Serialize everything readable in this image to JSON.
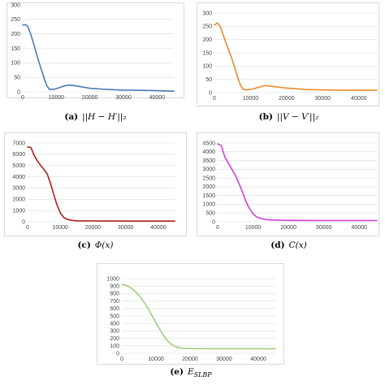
{
  "chart_data": [
    {
      "type": "line",
      "caption_tag": "(a)",
      "caption_expr": "||H − H′||₂",
      "color": "#4a7ab8",
      "ylim": [
        0,
        300
      ],
      "yticks": [
        "0",
        "50",
        "100",
        "150",
        "200",
        "250",
        "300"
      ],
      "xlim": [
        0,
        45000
      ],
      "xticks": [
        "0",
        "10000",
        "20000",
        "30000",
        "40000"
      ],
      "grid": true,
      "x": [
        0,
        800,
        1500,
        2500,
        3500,
        4500,
        5500,
        6500,
        7200,
        8000,
        9000,
        10000,
        11000,
        12000,
        13000,
        14000,
        15000,
        17000,
        20000,
        25000,
        30000,
        35000,
        40000,
        45000
      ],
      "y": [
        230,
        232,
        226,
        195,
        155,
        115,
        78,
        42,
        20,
        8,
        8,
        11,
        15,
        19,
        22,
        23,
        22,
        18,
        12,
        8,
        6,
        5,
        4,
        2
      ]
    },
    {
      "type": "line",
      "caption_tag": "(b)",
      "caption_expr": "||V − V′||₂",
      "color": "#ed8a2a",
      "ylim": [
        0,
        300
      ],
      "yticks": [
        "0",
        "50",
        "100",
        "150",
        "200",
        "250",
        "300"
      ],
      "xlim": [
        0,
        45000
      ],
      "xticks": [
        "0",
        "10000",
        "20000",
        "30000",
        "40000"
      ],
      "grid": true,
      "x": [
        0,
        800,
        1500,
        2500,
        3500,
        4500,
        5500,
        6500,
        7300,
        8000,
        9000,
        10000,
        11000,
        12000,
        13000,
        14000,
        15000,
        17000,
        20000,
        25000,
        30000,
        35000,
        40000,
        45000
      ],
      "y": [
        255,
        262,
        252,
        215,
        175,
        140,
        100,
        55,
        25,
        12,
        10,
        12,
        15,
        19,
        23,
        26,
        25,
        22,
        17,
        12,
        10,
        9,
        9,
        9
      ]
    },
    {
      "type": "line",
      "caption_tag": "(c)",
      "caption_expr": "Φ(x)",
      "color": "#b01e1e",
      "ylim": [
        0,
        7000
      ],
      "yticks": [
        "0",
        "1000",
        "2000",
        "3000",
        "4000",
        "5000",
        "6000",
        "7000"
      ],
      "xlim": [
        0,
        45000
      ],
      "xticks": [
        "0",
        "10000",
        "20000",
        "30000",
        "40000"
      ],
      "grid": true,
      "x": [
        0,
        1000,
        2000,
        3000,
        4000,
        5000,
        6000,
        7000,
        8000,
        9000,
        10000,
        11000,
        12000,
        13000,
        14000,
        15000,
        17000,
        20000,
        25000,
        30000,
        35000,
        40000,
        45000
      ],
      "y": [
        6650,
        6600,
        5900,
        5400,
        5000,
        4650,
        4250,
        3400,
        2400,
        1500,
        800,
        400,
        230,
        150,
        110,
        90,
        80,
        70,
        65,
        60,
        60,
        60,
        60
      ]
    },
    {
      "type": "line",
      "caption_tag": "(d)",
      "caption_expr": "C(x)",
      "color": "#d63fd6",
      "ylim": [
        0,
        4500
      ],
      "yticks": [
        "0",
        "500",
        "1000",
        "1500",
        "2000",
        "2500",
        "3000",
        "3500",
        "4000",
        "4500"
      ],
      "xlim": [
        0,
        45000
      ],
      "xticks": [
        "0",
        "10000",
        "20000",
        "30000",
        "40000"
      ],
      "grid": true,
      "x": [
        0,
        1000,
        2000,
        3000,
        4000,
        5000,
        6000,
        7000,
        8000,
        9000,
        10000,
        11000,
        12000,
        13000,
        14000,
        15000,
        17000,
        20000,
        25000,
        30000,
        35000,
        40000,
        45000
      ],
      "y": [
        4450,
        4350,
        3700,
        3350,
        3000,
        2650,
        2200,
        1700,
        1150,
        750,
        450,
        280,
        200,
        150,
        120,
        100,
        90,
        80,
        75,
        70,
        70,
        70,
        70
      ]
    },
    {
      "type": "line",
      "caption_tag": "(e)",
      "caption_expr": "E",
      "caption_sub": "SLBP",
      "color": "#9ccf7c",
      "ylim": [
        0,
        1000
      ],
      "yticks": [
        "0",
        "100",
        "200",
        "300",
        "400",
        "500",
        "600",
        "700",
        "800",
        "900",
        "1000"
      ],
      "xlim": [
        0,
        45000
      ],
      "xticks": [
        "0",
        "10000",
        "20000",
        "30000",
        "40000"
      ],
      "grid": true,
      "x": [
        0,
        1000,
        2000,
        3000,
        4000,
        5000,
        6000,
        7000,
        8000,
        9000,
        10000,
        11000,
        12000,
        13000,
        14000,
        15000,
        16000,
        17000,
        18000,
        20000,
        25000,
        30000,
        35000,
        40000,
        45000
      ],
      "y": [
        920,
        915,
        895,
        865,
        825,
        775,
        715,
        650,
        575,
        495,
        410,
        330,
        255,
        190,
        140,
        105,
        85,
        72,
        67,
        64,
        62,
        62,
        62,
        62,
        62
      ]
    }
  ]
}
